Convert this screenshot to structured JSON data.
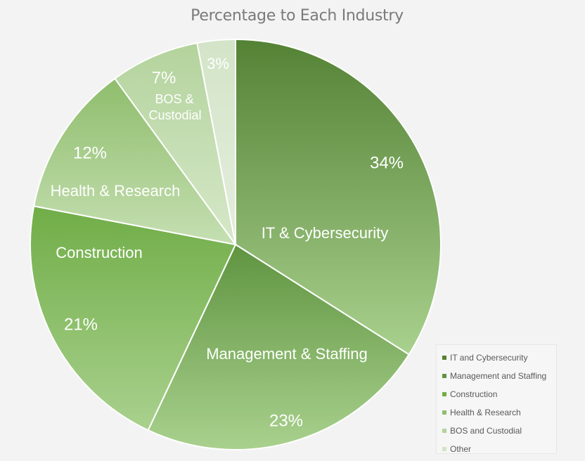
{
  "chart_data": {
    "type": "pie",
    "title": "Percentage to Each Industry",
    "slices": [
      {
        "label": "IT & Cybersecurity",
        "percent_label": "34%",
        "value": 34,
        "color_top": "#548235",
        "color_bottom": "#a9d18e"
      },
      {
        "label": "Management & Staffing",
        "percent_label": "23%",
        "value": 23,
        "color_top": "#5f9440",
        "color_bottom": "#a9d18e"
      },
      {
        "label": "Construction",
        "percent_label": "21%",
        "value": 21,
        "color_top": "#70ad47",
        "color_bottom": "#a9d18e"
      },
      {
        "label": "Health & Research",
        "percent_label": "12%",
        "value": 12,
        "color_top": "#8fbd6c",
        "color_bottom": "#c5dfb2"
      },
      {
        "label": "BOS & Custodial",
        "percent_label": "7%",
        "value": 7,
        "color_top": "#b3d39c",
        "color_bottom": "#d6e8c9"
      },
      {
        "label": "",
        "percent_label": "3%",
        "value": 3,
        "color_top": "#d3e4c8",
        "color_bottom": "#e4eedd"
      }
    ],
    "legend": {
      "position": "bottom-right",
      "entries": [
        {
          "name": "IT and Cybersecurity",
          "color": "#548235"
        },
        {
          "name": "Management and Staffing",
          "color": "#5f9440"
        },
        {
          "name": "Construction",
          "color": "#70ad47"
        },
        {
          "name": "Health & Research",
          "color": "#8fbd6c"
        },
        {
          "name": "BOS and Custodial",
          "color": "#b3d39c"
        },
        {
          "name": "Other",
          "color": "#d3e4c8"
        }
      ]
    }
  }
}
